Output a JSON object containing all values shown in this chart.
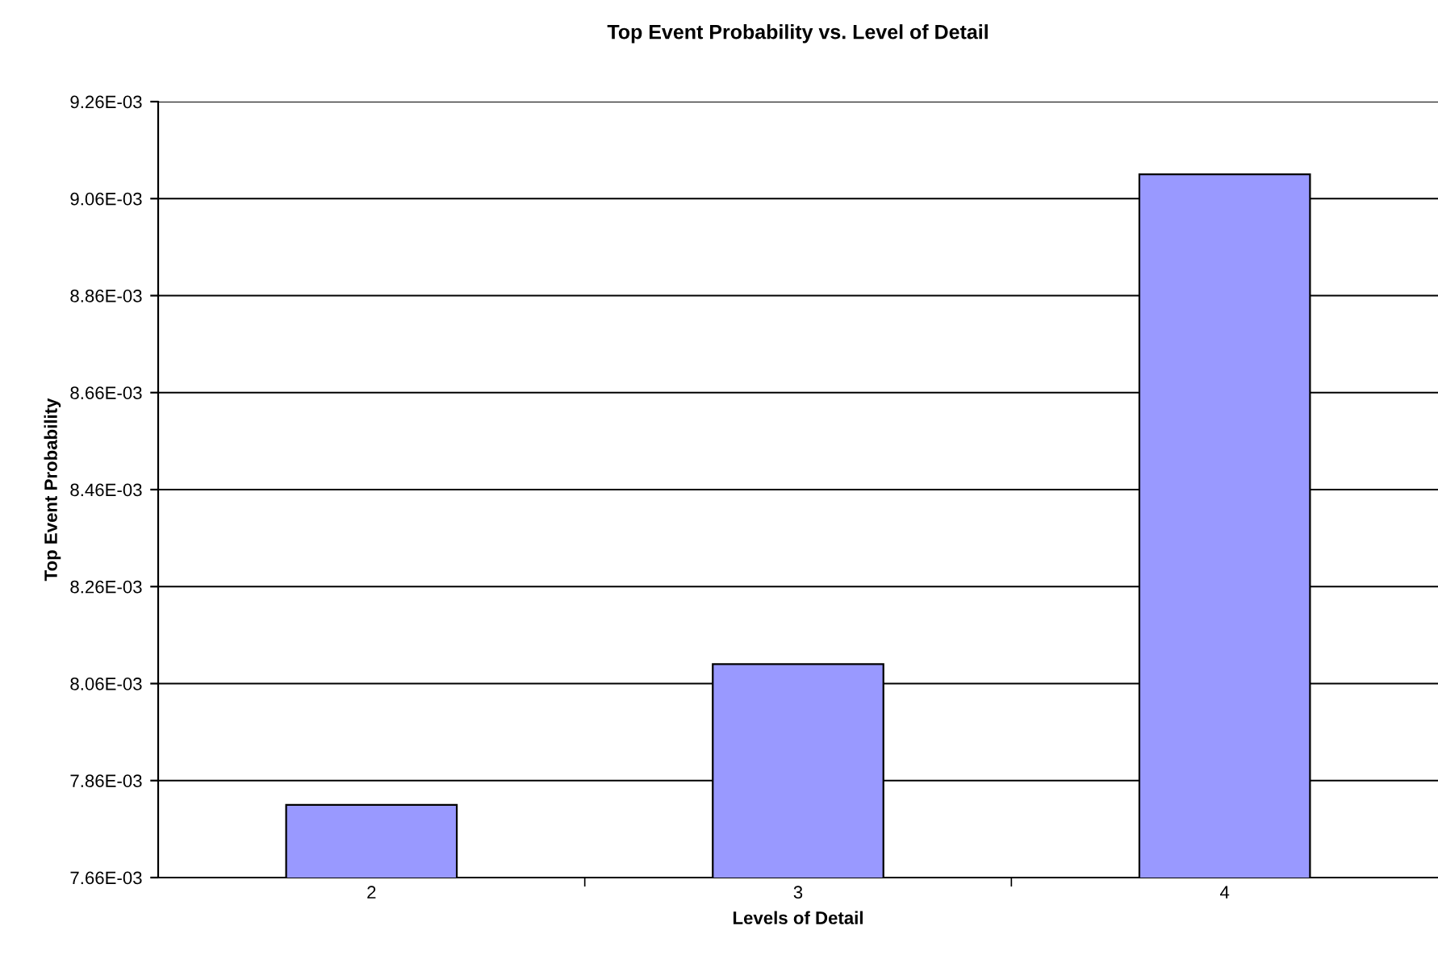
{
  "chart_data": {
    "type": "bar",
    "title": "Top Event Probability vs. Level of Detail",
    "xlabel": "Levels of Detail",
    "ylabel": "Top Event Probability",
    "categories": [
      "2",
      "3",
      "4"
    ],
    "values": [
      0.00781,
      0.0081,
      0.00911
    ],
    "color": "#9999ff",
    "ylim": [
      0.00766,
      0.00926
    ],
    "yticks": [
      {
        "value": 0.00766,
        "label": "7.66E-03"
      },
      {
        "value": 0.00786,
        "label": "7.86E-03"
      },
      {
        "value": 0.00806,
        "label": "8.06E-03"
      },
      {
        "value": 0.00826,
        "label": "8.26E-03"
      },
      {
        "value": 0.00846,
        "label": "8.46E-03"
      },
      {
        "value": 0.00866,
        "label": "8.66E-03"
      },
      {
        "value": 0.00886,
        "label": "8.86E-03"
      },
      {
        "value": 0.00906,
        "label": "9.06E-03"
      },
      {
        "value": 0.00926,
        "label": "9.26E-03"
      }
    ],
    "grid": "y"
  }
}
